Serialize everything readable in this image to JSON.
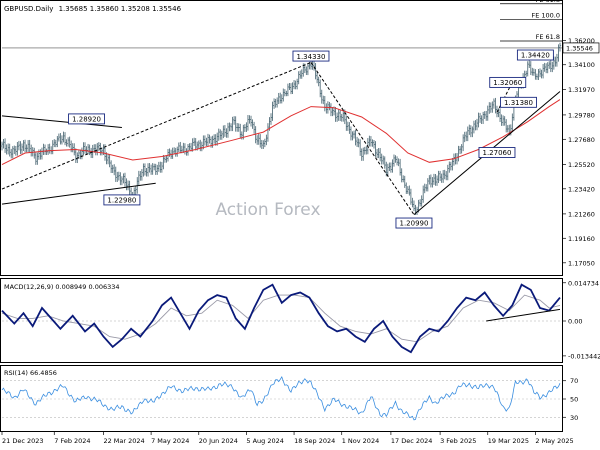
{
  "chart_data": {
    "type": "line",
    "symbol_title": "GBPUSD.Daily",
    "ohlc_header": "1.35685 1.35860 1.35208 1.35546",
    "watermark": "Action Forex",
    "price_axis": {
      "ylim": [
        1.16,
        1.395
      ],
      "ticks": [
        "1.36200",
        "1.34100",
        "1.31970",
        "1.29780",
        "1.27680",
        "1.25520",
        "1.23420",
        "1.21260",
        "1.19160",
        "1.17050"
      ],
      "tick_values": [
        1.362,
        1.341,
        1.3197,
        1.2978,
        1.2768,
        1.2552,
        1.2342,
        1.2126,
        1.1916,
        1.1705
      ],
      "last_price": "1.35546",
      "last_value": 1.35546
    },
    "fib_levels": [
      {
        "label": "FE 61.8",
        "value": 1.3935
      },
      {
        "label": "FE 100.0",
        "value": 1.38
      },
      {
        "label": "FE 61.8",
        "value": 1.3614
      }
    ],
    "x_axis": {
      "labels": [
        "21 Dec 2023",
        "7 Feb 2024",
        "22 Mar 2024",
        "7 May 2024",
        "20 Jun 2024",
        "5 Aug 2024",
        "18 Sep 2024",
        "1 Nov 2024",
        "17 Dec 2024",
        "3 Feb 2025",
        "19 Mar 2025",
        "2 May 2025"
      ],
      "label_index": [
        0,
        34,
        66,
        97,
        128,
        159,
        190,
        221,
        253,
        285,
        316,
        347
      ]
    },
    "n_bars": 364,
    "price_series": [
      [
        0,
        1.271
      ],
      [
        8,
        1.266
      ],
      [
        14,
        1.273
      ],
      [
        22,
        1.262
      ],
      [
        30,
        1.268
      ],
      [
        40,
        1.279
      ],
      [
        48,
        1.263
      ],
      [
        55,
        1.268
      ],
      [
        66,
        1.268
      ],
      [
        72,
        1.249
      ],
      [
        78,
        1.243
      ],
      [
        85,
        1.229
      ],
      [
        92,
        1.252
      ],
      [
        98,
        1.25
      ],
      [
        104,
        1.255
      ],
      [
        110,
        1.266
      ],
      [
        118,
        1.268
      ],
      [
        126,
        1.272
      ],
      [
        134,
        1.275
      ],
      [
        142,
        1.28
      ],
      [
        150,
        1.291
      ],
      [
        156,
        1.283
      ],
      [
        162,
        1.294
      ],
      [
        166,
        1.276
      ],
      [
        170,
        1.27
      ],
      [
        176,
        1.304
      ],
      [
        182,
        1.315
      ],
      [
        188,
        1.32
      ],
      [
        193,
        1.33
      ],
      [
        198,
        1.338
      ],
      [
        201,
        1.343
      ],
      [
        204,
        1.332
      ],
      [
        210,
        1.305
      ],
      [
        216,
        1.3
      ],
      [
        222,
        1.295
      ],
      [
        228,
        1.281
      ],
      [
        234,
        1.265
      ],
      [
        240,
        1.275
      ],
      [
        246,
        1.262
      ],
      [
        250,
        1.25
      ],
      [
        256,
        1.26
      ],
      [
        260,
        1.245
      ],
      [
        264,
        1.232
      ],
      [
        268,
        1.215
      ],
      [
        272,
        1.223
      ],
      [
        278,
        1.243
      ],
      [
        282,
        1.241
      ],
      [
        288,
        1.247
      ],
      [
        294,
        1.258
      ],
      [
        298,
        1.27
      ],
      [
        304,
        1.285
      ],
      [
        310,
        1.292
      ],
      [
        316,
        1.302
      ],
      [
        320,
        1.306
      ],
      [
        326,
        1.292
      ],
      [
        330,
        1.281
      ],
      [
        334,
        1.314
      ],
      [
        338,
        1.324
      ],
      [
        342,
        1.342
      ],
      [
        346,
        1.33
      ],
      [
        350,
        1.335
      ],
      [
        356,
        1.339
      ],
      [
        360,
        1.345
      ],
      [
        363,
        1.356
      ]
    ],
    "ma_series": [
      [
        0,
        1.255
      ],
      [
        15,
        1.265
      ],
      [
        30,
        1.267
      ],
      [
        48,
        1.268
      ],
      [
        66,
        1.265
      ],
      [
        85,
        1.259
      ],
      [
        104,
        1.262
      ],
      [
        126,
        1.268
      ],
      [
        150,
        1.276
      ],
      [
        170,
        1.283
      ],
      [
        188,
        1.297
      ],
      [
        201,
        1.305
      ],
      [
        216,
        1.304
      ],
      [
        234,
        1.296
      ],
      [
        250,
        1.282
      ],
      [
        264,
        1.265
      ],
      [
        278,
        1.257
      ],
      [
        294,
        1.26
      ],
      [
        310,
        1.268
      ],
      [
        326,
        1.279
      ],
      [
        342,
        1.292
      ],
      [
        356,
        1.305
      ],
      [
        363,
        1.311
      ]
    ],
    "trendlines": [
      {
        "name": "upper-channel",
        "points": [
          [
            0,
            1.234
          ],
          [
            201,
            1.343
          ]
        ],
        "style": "dashed"
      },
      {
        "name": "lower-diag",
        "points": [
          [
            201,
            1.343
          ],
          [
            268,
            1.212
          ]
        ],
        "style": "dashed"
      },
      {
        "name": "up-trend",
        "points": [
          [
            268,
            1.212
          ],
          [
            363,
            1.318
          ]
        ],
        "style": "solid"
      },
      {
        "name": "wedge-top",
        "points": [
          [
            0,
            1.297
          ],
          [
            78,
            1.287
          ]
        ],
        "style": "solid"
      },
      {
        "name": "wedge-bottom",
        "points": [
          [
            0,
            1.221
          ],
          [
            100,
            1.239
          ]
        ],
        "style": "solid"
      },
      {
        "name": "short-dash-1",
        "points": [
          [
            322,
            1.3
          ],
          [
            332,
            1.326
          ]
        ],
        "style": "dashed"
      }
    ],
    "callouts": [
      {
        "label": "1.28920",
        "bar": 55,
        "value": 1.2892
      },
      {
        "label": "1.22980",
        "bar": 78,
        "value": 1.2298
      },
      {
        "label": "1.34330",
        "bar": 201,
        "value": 1.3433
      },
      {
        "label": "1.20990",
        "bar": 268,
        "value": 1.2099
      },
      {
        "label": "1.27060",
        "bar": 322,
        "value": 1.2706
      },
      {
        "label": "1.32060",
        "bar": 329,
        "value": 1.3206
      },
      {
        "label": "1.31380",
        "bar": 336,
        "value": 1.3138
      },
      {
        "label": "1.34420",
        "bar": 347,
        "value": 1.3442
      }
    ],
    "macd": {
      "title": "MACD(12,26,9) 0.008949 0.006334",
      "ylim": [
        -0.0158,
        0.0158
      ],
      "tick_labels": [
        "0.014734",
        "0.00",
        "-0.013442"
      ],
      "tick_values": [
        0.014734,
        0.0,
        -0.013442
      ],
      "macd_series": [
        [
          0,
          0.004
        ],
        [
          8,
          -0.001
        ],
        [
          14,
          0.003
        ],
        [
          20,
          -0.002
        ],
        [
          26,
          0.005
        ],
        [
          32,
          0.001
        ],
        [
          38,
          -0.003
        ],
        [
          46,
          0.002
        ],
        [
          54,
          -0.004
        ],
        [
          60,
          -0.001
        ],
        [
          66,
          -0.006
        ],
        [
          72,
          -0.01
        ],
        [
          78,
          -0.007
        ],
        [
          84,
          -0.003
        ],
        [
          90,
          -0.006
        ],
        [
          98,
          0.0
        ],
        [
          104,
          0.006
        ],
        [
          110,
          0.009
        ],
        [
          116,
          0.003
        ],
        [
          122,
          -0.003
        ],
        [
          128,
          0.004
        ],
        [
          134,
          0.008
        ],
        [
          140,
          0.01
        ],
        [
          146,
          0.009
        ],
        [
          152,
          0.001
        ],
        [
          158,
          -0.003
        ],
        [
          164,
          0.005
        ],
        [
          170,
          0.012
        ],
        [
          176,
          0.014
        ],
        [
          182,
          0.007
        ],
        [
          188,
          0.01
        ],
        [
          194,
          0.011
        ],
        [
          200,
          0.009
        ],
        [
          206,
          0.003
        ],
        [
          212,
          -0.002
        ],
        [
          218,
          -0.004
        ],
        [
          224,
          -0.003
        ],
        [
          230,
          -0.006
        ],
        [
          236,
          -0.008
        ],
        [
          242,
          -0.003
        ],
        [
          248,
          0.0
        ],
        [
          254,
          -0.006
        ],
        [
          260,
          -0.01
        ],
        [
          266,
          -0.012
        ],
        [
          272,
          -0.006
        ],
        [
          278,
          -0.003
        ],
        [
          284,
          -0.004
        ],
        [
          290,
          0.0
        ],
        [
          296,
          0.005
        ],
        [
          302,
          0.009
        ],
        [
          308,
          0.008
        ],
        [
          314,
          0.011
        ],
        [
          320,
          0.006
        ],
        [
          326,
          0.002
        ],
        [
          332,
          0.006
        ],
        [
          338,
          0.014
        ],
        [
          344,
          0.012
        ],
        [
          350,
          0.005
        ],
        [
          356,
          0.004
        ],
        [
          363,
          0.009
        ]
      ],
      "signal_series": [
        [
          0,
          0.003
        ],
        [
          10,
          0.001
        ],
        [
          20,
          0.001
        ],
        [
          30,
          0.002
        ],
        [
          40,
          0.0
        ],
        [
          50,
          -0.001
        ],
        [
          60,
          -0.002
        ],
        [
          70,
          -0.006
        ],
        [
          80,
          -0.007
        ],
        [
          90,
          -0.005
        ],
        [
          100,
          -0.001
        ],
        [
          110,
          0.005
        ],
        [
          120,
          0.002
        ],
        [
          130,
          0.003
        ],
        [
          140,
          0.008
        ],
        [
          150,
          0.006
        ],
        [
          160,
          0.001
        ],
        [
          170,
          0.008
        ],
        [
          180,
          0.01
        ],
        [
          190,
          0.01
        ],
        [
          200,
          0.009
        ],
        [
          210,
          0.003
        ],
        [
          220,
          -0.002
        ],
        [
          230,
          -0.004
        ],
        [
          240,
          -0.005
        ],
        [
          250,
          -0.003
        ],
        [
          260,
          -0.007
        ],
        [
          270,
          -0.008
        ],
        [
          280,
          -0.004
        ],
        [
          290,
          -0.002
        ],
        [
          300,
          0.005
        ],
        [
          310,
          0.008
        ],
        [
          320,
          0.007
        ],
        [
          330,
          0.004
        ],
        [
          340,
          0.01
        ],
        [
          350,
          0.008
        ],
        [
          356,
          0.005
        ],
        [
          363,
          0.006
        ]
      ],
      "trendline": [
        [
          315,
          0.0
        ],
        [
          363,
          0.0045
        ]
      ]
    },
    "rsi": {
      "title": "RSI(14) 66.4856",
      "ylim": [
        15,
        85
      ],
      "tick_labels": [
        "70",
        "50",
        "30"
      ],
      "tick_values": [
        70,
        50,
        30
      ],
      "series": [
        [
          0,
          60
        ],
        [
          8,
          52
        ],
        [
          14,
          60
        ],
        [
          22,
          45
        ],
        [
          30,
          56
        ],
        [
          40,
          64
        ],
        [
          48,
          47
        ],
        [
          55,
          53
        ],
        [
          62,
          48
        ],
        [
          72,
          38
        ],
        [
          78,
          42
        ],
        [
          85,
          34
        ],
        [
          92,
          50
        ],
        [
          98,
          46
        ],
        [
          104,
          56
        ],
        [
          110,
          63
        ],
        [
          118,
          59
        ],
        [
          126,
          62
        ],
        [
          134,
          60
        ],
        [
          142,
          66
        ],
        [
          150,
          64
        ],
        [
          156,
          50
        ],
        [
          162,
          62
        ],
        [
          166,
          44
        ],
        [
          170,
          47
        ],
        [
          176,
          68
        ],
        [
          182,
          71
        ],
        [
          188,
          60
        ],
        [
          193,
          66
        ],
        [
          198,
          72
        ],
        [
          201,
          68
        ],
        [
          204,
          58
        ],
        [
          210,
          40
        ],
        [
          216,
          49
        ],
        [
          222,
          44
        ],
        [
          228,
          39
        ],
        [
          234,
          35
        ],
        [
          240,
          52
        ],
        [
          246,
          34
        ],
        [
          250,
          32
        ],
        [
          256,
          46
        ],
        [
          260,
          37
        ],
        [
          264,
          32
        ],
        [
          268,
          28
        ],
        [
          272,
          40
        ],
        [
          278,
          51
        ],
        [
          282,
          46
        ],
        [
          288,
          52
        ],
        [
          294,
          57
        ],
        [
          298,
          64
        ],
        [
          304,
          66
        ],
        [
          310,
          62
        ],
        [
          316,
          66
        ],
        [
          320,
          63
        ],
        [
          326,
          40
        ],
        [
          330,
          40
        ],
        [
          334,
          67
        ],
        [
          338,
          68
        ],
        [
          342,
          72
        ],
        [
          346,
          57
        ],
        [
          350,
          52
        ],
        [
          356,
          57
        ],
        [
          360,
          62
        ],
        [
          363,
          66
        ]
      ]
    }
  }
}
